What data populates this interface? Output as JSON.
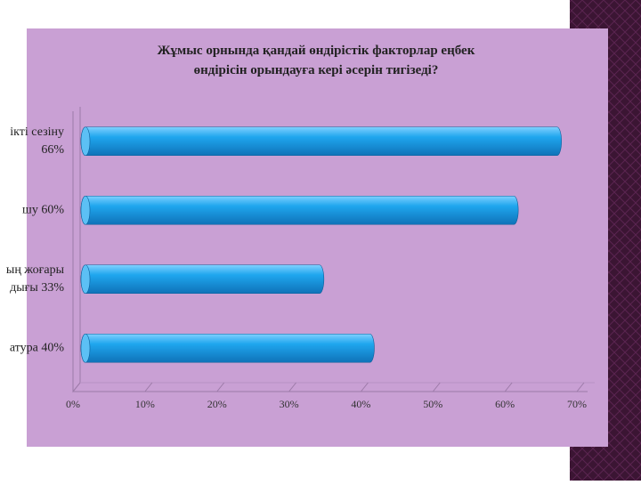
{
  "chart_data": {
    "type": "bar",
    "orientation": "horizontal",
    "title": "Жұмыс орнында қандай өндірістік факторлар еңбек\nөндірісін орындауға кері әсерін тигізеді?",
    "categories": [
      "ікті сезіну\n66%",
      "шу 60%",
      "ың жоғары\nдығы 33%",
      "атура 40%"
    ],
    "values": [
      66,
      60,
      33,
      40
    ],
    "color": "#1b9be3",
    "xlim": [
      0,
      70
    ],
    "xticks": [
      {
        "value": 0,
        "label": "0%"
      },
      {
        "value": 10,
        "label": "10%"
      },
      {
        "value": 20,
        "label": "20%"
      },
      {
        "value": 30,
        "label": "30%"
      },
      {
        "value": 40,
        "label": "40%"
      },
      {
        "value": 50,
        "label": "50%"
      },
      {
        "value": 60,
        "label": "60%"
      },
      {
        "value": 70,
        "label": "70%"
      }
    ],
    "grid": false
  }
}
